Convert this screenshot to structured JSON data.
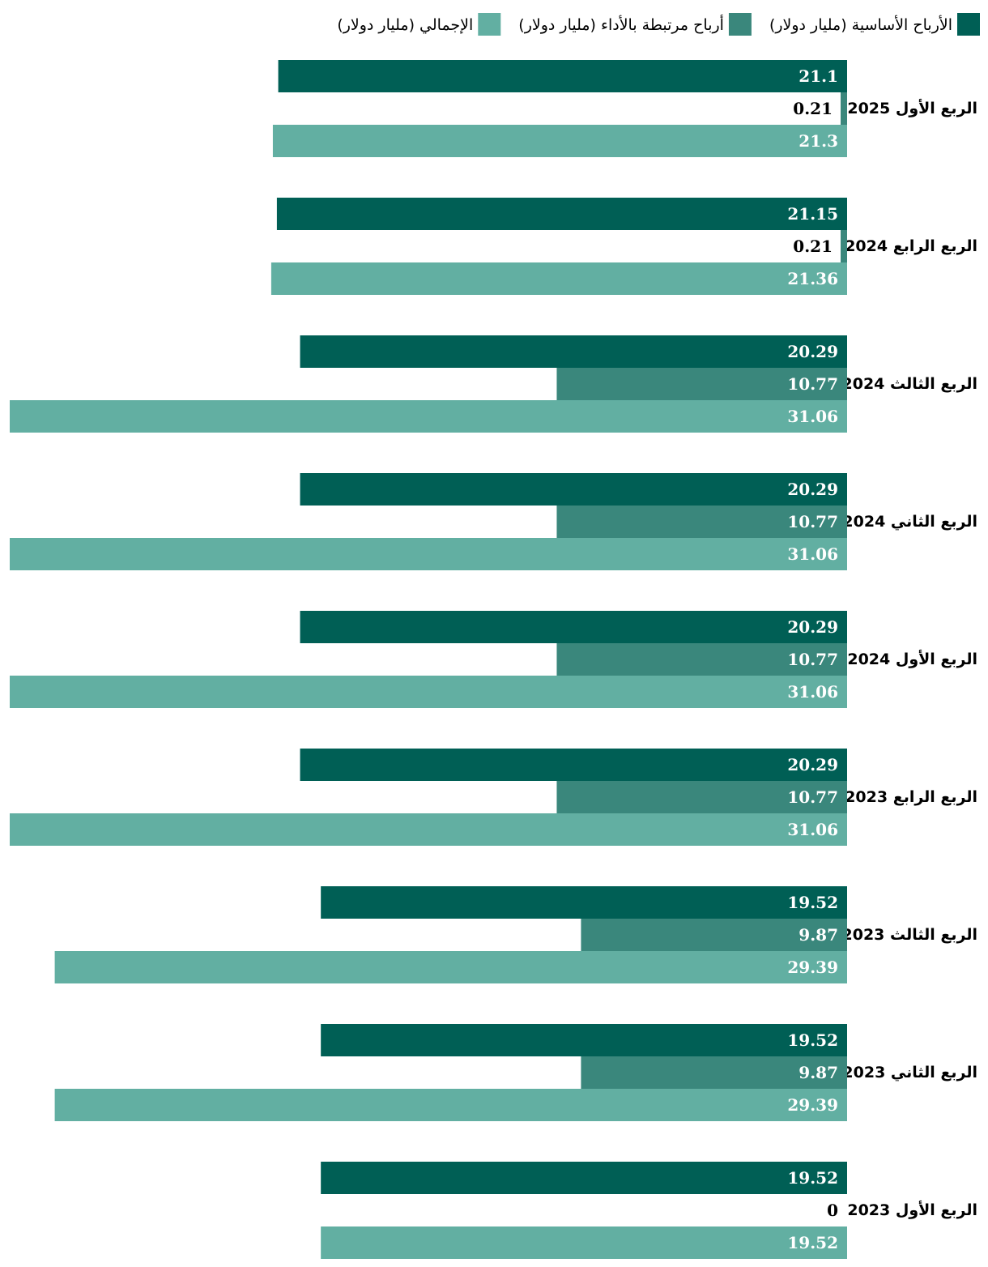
{
  "chart_data": {
    "type": "bar",
    "orientation": "horizontal",
    "direction": "rtl",
    "categories": [
      "الربع الأول 2025",
      "الربع الرابع 2024",
      "الربع الثالث 2024",
      "الربع الثاني 2024",
      "الربع الأول 2024",
      "الربع الرابع 2023",
      "الربع الثالث 2023",
      "الربع الثاني 2023",
      "الربع الأول 2023"
    ],
    "series": [
      {
        "name": "الأرباح الأساسية (مليار دولار)",
        "color": "#005f55",
        "values": [
          21.1,
          21.15,
          20.29,
          20.29,
          20.29,
          20.29,
          19.52,
          19.52,
          19.52
        ],
        "labels": [
          "21.1",
          "21.15",
          "20.29",
          "20.29",
          "20.29",
          "20.29",
          "19.52",
          "19.52",
          "19.52"
        ]
      },
      {
        "name": "أرباح مرتبطة بالأداء (مليار دولار)",
        "color": "#3a877c",
        "values": [
          0.21,
          0.21,
          10.77,
          10.77,
          10.77,
          10.77,
          9.87,
          9.87,
          0
        ],
        "labels": [
          "0.21",
          "0.21",
          "10.77",
          "10.77",
          "10.77",
          "10.77",
          "9.87",
          "9.87",
          "0"
        ]
      },
      {
        "name": "الإجمالي (مليار دولار)",
        "color": "#62afa2",
        "values": [
          21.3,
          21.36,
          31.06,
          31.06,
          31.06,
          31.06,
          29.39,
          29.39,
          19.52
        ],
        "labels": [
          "21.3",
          "21.36",
          "31.06",
          "31.06",
          "31.06",
          "31.06",
          "29.39",
          "29.39",
          "19.52"
        ]
      }
    ],
    "xlim": [
      0,
      31.06
    ],
    "legend_position": "top-right",
    "grid": false
  }
}
